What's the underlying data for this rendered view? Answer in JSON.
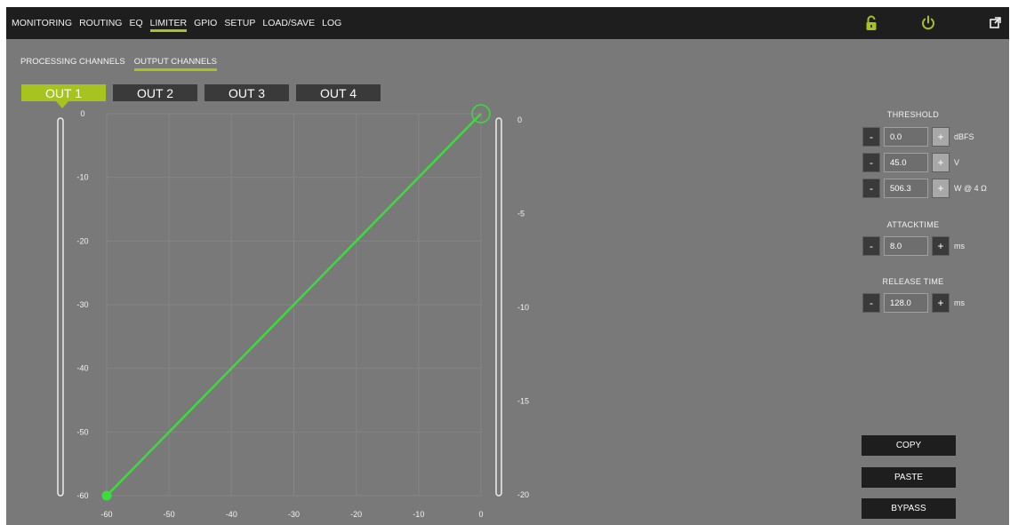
{
  "top_nav": {
    "items": [
      {
        "label": "MONITORING",
        "active": false
      },
      {
        "label": "ROUTING",
        "active": false
      },
      {
        "label": "EQ",
        "active": false
      },
      {
        "label": "LIMITER",
        "active": true
      },
      {
        "label": "GPIO",
        "active": false
      },
      {
        "label": "SETUP",
        "active": false
      },
      {
        "label": "LOAD/SAVE",
        "active": false
      },
      {
        "label": "LOG",
        "active": false
      }
    ],
    "icons": [
      "lock-icon",
      "power-icon",
      "expand-icon"
    ]
  },
  "sub_nav": {
    "items": [
      {
        "label": "PROCESSING CHANNELS",
        "active": false
      },
      {
        "label": "OUTPUT CHANNELS",
        "active": true
      }
    ]
  },
  "channel_tabs": [
    {
      "label": "OUT 1",
      "active": true
    },
    {
      "label": "OUT 2",
      "active": false
    },
    {
      "label": "OUT 3",
      "active": false
    },
    {
      "label": "OUT 4",
      "active": false
    }
  ],
  "chart_data": {
    "type": "line",
    "x_ticks": [
      "-60",
      "-50",
      "-40",
      "-30",
      "-20",
      "-10",
      "0"
    ],
    "y_ticks": [
      "0",
      "-10",
      "-20",
      "-30",
      "-40",
      "-50",
      "-60"
    ],
    "right_ticks": [
      "0",
      "-5",
      "-10",
      "-15",
      "-20"
    ],
    "xlim": [
      -60,
      0
    ],
    "ylim": [
      -60,
      0
    ],
    "series": [
      {
        "x": [
          -60,
          0
        ],
        "y": [
          -60,
          0
        ],
        "color": "#3bdc3b"
      }
    ],
    "threshold_point": [
      0,
      0
    ],
    "grid": true
  },
  "controls": {
    "threshold": {
      "title": "THRESHOLD",
      "rows": [
        {
          "minus": "-",
          "value": "0.0",
          "plus": "+",
          "unit": "dBFS"
        },
        {
          "minus": "-",
          "value": "45.0",
          "plus": "+",
          "unit": "V"
        },
        {
          "minus": "-",
          "value": "506.3",
          "plus": "+",
          "unit": "W @ 4 Ω"
        }
      ]
    },
    "attack": {
      "title": "ATTACKTIME",
      "row": {
        "minus": "-",
        "value": "8.0",
        "plus": "+",
        "unit": "ms"
      }
    },
    "release": {
      "title": "RELEASE TIME",
      "row": {
        "minus": "-",
        "value": "128.0",
        "plus": "+",
        "unit": "ms"
      }
    }
  },
  "actions": {
    "copy": "COPY",
    "paste": "PASTE",
    "bypass": "BYPASS"
  },
  "colors": {
    "accent": "#a7c31f",
    "curve": "#3bdc3b",
    "panel_bg": "#797979",
    "bar_bg": "#1e1e1e"
  }
}
